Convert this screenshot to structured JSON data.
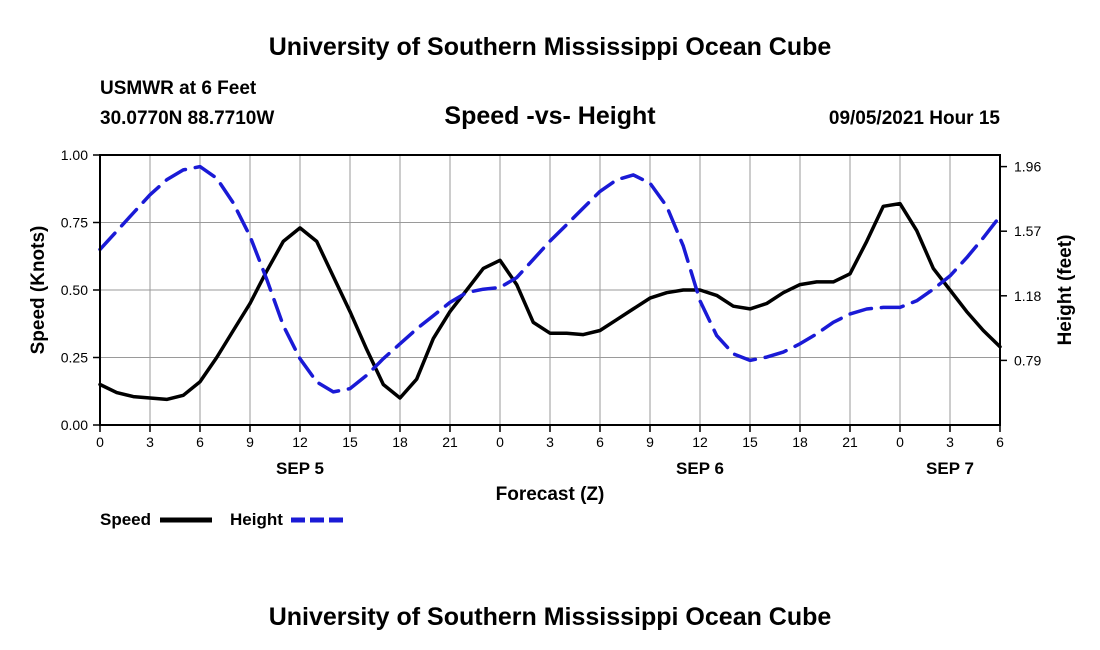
{
  "header": {
    "title": "University of Southern Mississippi Ocean Cube",
    "station": "USMWR at 6 Feet",
    "location": "30.0770N  88.7710W",
    "subtitle": "Speed -vs- Height",
    "datetime": "09/05/2021 Hour 15"
  },
  "footer": {
    "title": "University of Southern Mississippi Ocean Cube"
  },
  "colors": {
    "speed": "#000000",
    "height": "#1a1ad6",
    "grid": "#9a9a9a"
  },
  "chart_data": {
    "type": "line",
    "title": "Speed -vs- Height",
    "xlabel": "Forecast (Z)",
    "ylabel": "Speed (Knots)",
    "y2label": "Height (feet)",
    "xlim": [
      0,
      54
    ],
    "ylim": [
      0,
      1
    ],
    "y2lim": [
      0.4,
      2.03
    ],
    "x_ticks": [
      0,
      3,
      6,
      9,
      12,
      15,
      18,
      21,
      24,
      27,
      30,
      33,
      36,
      39,
      42,
      45,
      48,
      51,
      54
    ],
    "x_tick_labels": [
      "0",
      "3",
      "6",
      "9",
      "12",
      "15",
      "18",
      "21",
      "0",
      "3",
      "6",
      "9",
      "12",
      "15",
      "18",
      "21",
      "0",
      "3",
      "6"
    ],
    "y_ticks": [
      0,
      0.25,
      0.5,
      0.75,
      1.0
    ],
    "y_tick_labels": [
      "0.00",
      "0.25",
      "0.50",
      "0.75",
      "1.00"
    ],
    "y2_ticks": [
      0.79,
      1.18,
      1.57,
      1.96
    ],
    "y2_tick_labels": [
      "0.79",
      "1.18",
      "1.57",
      "1.96"
    ],
    "day_labels": [
      {
        "x": 12,
        "label": "SEP 5"
      },
      {
        "x": 36,
        "label": "SEP 6"
      },
      {
        "x": 51,
        "label": "SEP 7"
      }
    ],
    "grid": true,
    "legend_position": "bottom-left",
    "series": [
      {
        "name": "Speed",
        "axis": "left",
        "style": "solid",
        "points": [
          [
            0,
            0.15
          ],
          [
            1,
            0.12
          ],
          [
            2,
            0.105
          ],
          [
            3,
            0.1
          ],
          [
            4,
            0.095
          ],
          [
            5,
            0.11
          ],
          [
            6,
            0.16
          ],
          [
            7,
            0.25
          ],
          [
            8,
            0.35
          ],
          [
            9,
            0.45
          ],
          [
            10,
            0.57
          ],
          [
            11,
            0.68
          ],
          [
            12,
            0.73
          ],
          [
            13,
            0.68
          ],
          [
            14,
            0.55
          ],
          [
            15,
            0.42
          ],
          [
            16,
            0.28
          ],
          [
            17,
            0.15
          ],
          [
            18,
            0.1
          ],
          [
            19,
            0.17
          ],
          [
            20,
            0.32
          ],
          [
            21,
            0.42
          ],
          [
            22,
            0.5
          ],
          [
            23,
            0.58
          ],
          [
            24,
            0.61
          ],
          [
            25,
            0.52
          ],
          [
            26,
            0.38
          ],
          [
            27,
            0.34
          ],
          [
            28,
            0.34
          ],
          [
            29,
            0.335
          ],
          [
            30,
            0.35
          ],
          [
            31,
            0.39
          ],
          [
            32,
            0.43
          ],
          [
            33,
            0.47
          ],
          [
            34,
            0.49
          ],
          [
            35,
            0.5
          ],
          [
            36,
            0.5
          ],
          [
            37,
            0.48
          ],
          [
            38,
            0.44
          ],
          [
            39,
            0.43
          ],
          [
            40,
            0.45
          ],
          [
            41,
            0.49
          ],
          [
            42,
            0.52
          ],
          [
            43,
            0.53
          ],
          [
            44,
            0.53
          ],
          [
            45,
            0.56
          ],
          [
            46,
            0.68
          ],
          [
            47,
            0.81
          ],
          [
            48,
            0.82
          ],
          [
            49,
            0.72
          ],
          [
            50,
            0.58
          ],
          [
            51,
            0.5
          ],
          [
            52,
            0.42
          ],
          [
            53,
            0.35
          ],
          [
            54,
            0.29
          ]
        ]
      },
      {
        "name": "Height",
        "axis": "right",
        "style": "dashed",
        "points": [
          [
            0,
            1.46
          ],
          [
            1,
            1.57
          ],
          [
            2,
            1.68
          ],
          [
            3,
            1.79
          ],
          [
            4,
            1.88
          ],
          [
            5,
            1.94
          ],
          [
            6,
            1.96
          ],
          [
            7,
            1.89
          ],
          [
            8,
            1.74
          ],
          [
            9,
            1.54
          ],
          [
            10,
            1.28
          ],
          [
            11,
            1.0
          ],
          [
            12,
            0.8
          ],
          [
            13,
            0.66
          ],
          [
            14,
            0.6
          ],
          [
            15,
            0.62
          ],
          [
            16,
            0.7
          ],
          [
            17,
            0.8
          ],
          [
            18,
            0.89
          ],
          [
            19,
            0.98
          ],
          [
            20,
            1.06
          ],
          [
            21,
            1.14
          ],
          [
            22,
            1.2
          ],
          [
            23,
            1.22
          ],
          [
            24,
            1.23
          ],
          [
            25,
            1.29
          ],
          [
            26,
            1.4
          ],
          [
            27,
            1.51
          ],
          [
            28,
            1.61
          ],
          [
            29,
            1.71
          ],
          [
            30,
            1.81
          ],
          [
            31,
            1.88
          ],
          [
            32,
            1.91
          ],
          [
            33,
            1.86
          ],
          [
            34,
            1.72
          ],
          [
            35,
            1.48
          ],
          [
            36,
            1.15
          ],
          [
            37,
            0.94
          ],
          [
            38,
            0.83
          ],
          [
            39,
            0.79
          ],
          [
            40,
            0.81
          ],
          [
            41,
            0.84
          ],
          [
            42,
            0.89
          ],
          [
            43,
            0.95
          ],
          [
            44,
            1.02
          ],
          [
            45,
            1.07
          ],
          [
            46,
            1.1
          ],
          [
            47,
            1.11
          ],
          [
            48,
            1.11
          ],
          [
            49,
            1.15
          ],
          [
            50,
            1.22
          ],
          [
            51,
            1.3
          ],
          [
            52,
            1.41
          ],
          [
            53,
            1.53
          ],
          [
            54,
            1.66
          ]
        ]
      }
    ]
  }
}
